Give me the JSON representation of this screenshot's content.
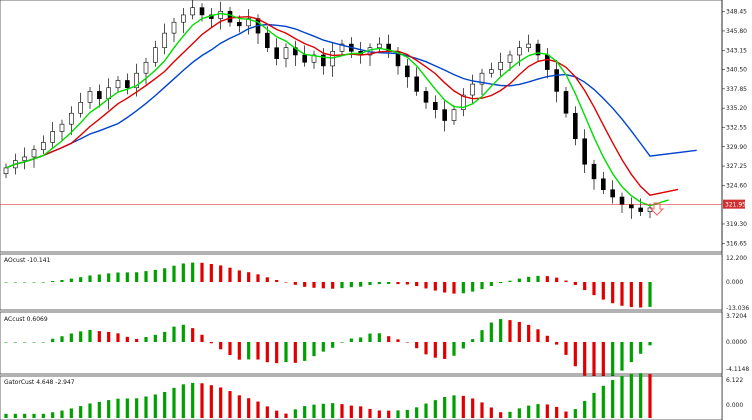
{
  "colors": {
    "up_candle": "#ffffff",
    "down_candle": "#000000",
    "ma_fast": "#00dd00",
    "ma_mid": "#dd0000",
    "ma_slow": "#0044cc",
    "hist_up": "#00a000",
    "hist_down": "#e00000",
    "price_line": "#d04040",
    "price_tag_bg": "#d03030",
    "arrow": "#ff6060"
  },
  "price_axis": {
    "ticks": [
      "348.45",
      "345.80",
      "343.15",
      "340.50",
      "337.85",
      "335.20",
      "332.55",
      "329.90",
      "327.25",
      "324.60",
      "319.30",
      "316.65"
    ],
    "current_price": "321.95",
    "range": [
      316.0,
      349.5
    ]
  },
  "indicators": [
    {
      "title": "AOcust -10.141",
      "ticks": [
        "12.200",
        "0.000",
        "-13.036"
      ]
    },
    {
      "title": "ACcust 0.6069",
      "ticks": [
        "3.7204",
        "0.0000",
        "-4.1148"
      ]
    },
    {
      "title": "GatorCust 4.648 -2.947",
      "ticks": [
        "6.122",
        "0.000"
      ]
    }
  ],
  "chart_data": {
    "type": "candlestick",
    "close_series": [
      327.0,
      328.0,
      328.5,
      329.5,
      330.5,
      332.0,
      333.0,
      334.5,
      336.0,
      337.5,
      336.5,
      338.0,
      339.0,
      338.0,
      340.0,
      341.5,
      343.5,
      345.5,
      347.0,
      348.0,
      349.0,
      348.0,
      347.5,
      348.5,
      347.0,
      346.5,
      347.5,
      345.5,
      343.5,
      342.0,
      343.5,
      342.5,
      341.5,
      342.5,
      341.0,
      343.0,
      344.0,
      343.0,
      342.5,
      343.5,
      344.0,
      343.0,
      341.0,
      339.5,
      337.5,
      336.0,
      335.0,
      333.5,
      335.0,
      337.0,
      338.5,
      340.0,
      340.5,
      341.5,
      342.5,
      343.5,
      344.0,
      342.5,
      340.5,
      337.5,
      334.5,
      331.0,
      327.5,
      325.5,
      324.0,
      323.0,
      322.0,
      321.5,
      321.0,
      321.5
    ]
  }
}
